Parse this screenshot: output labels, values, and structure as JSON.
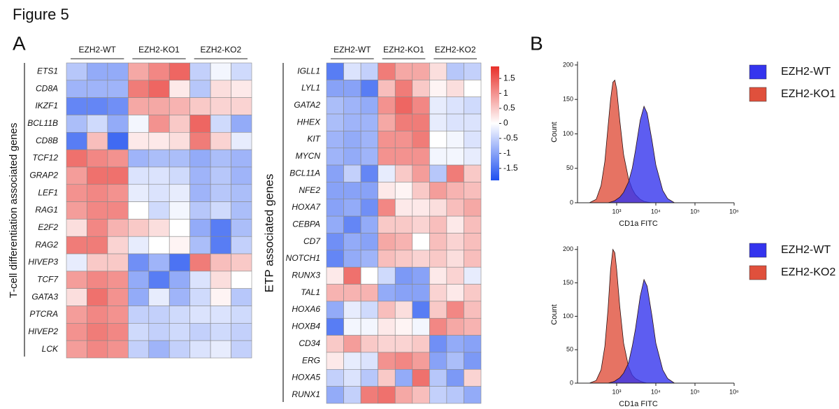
{
  "figure": {
    "title": "Figure 5",
    "panel_labels": [
      "A",
      "B"
    ]
  },
  "chart_data": [
    {
      "type": "heatmap",
      "ylabel": "T-cell differentiation associated genes",
      "column_groups": [
        "EZH2-WT",
        "EZH2-KO1",
        "EZH2-KO2"
      ],
      "rows": [
        "ETS1",
        "CD8A",
        "IKZF1",
        "BCL11B",
        "CD8B",
        "TCF12",
        "GRAP2",
        "LEF1",
        "RAG1",
        "E2F2",
        "RAG2",
        "HIVEP3",
        "TCF7",
        "GATA3",
        "PTCRA",
        "HIVEP2",
        "LCK"
      ],
      "values": [
        [
          -0.6,
          -0.9,
          -0.9,
          0.8,
          1.1,
          1.4,
          -0.5,
          -0.1,
          -0.4
        ],
        [
          -0.8,
          -0.8,
          -0.8,
          1.2,
          1.4,
          0.2,
          -0.6,
          0.3,
          0.2
        ],
        [
          -1.3,
          -1.3,
          -1.2,
          0.8,
          0.8,
          0.7,
          0.5,
          0.4,
          0.4
        ],
        [
          -0.7,
          -0.4,
          -0.9,
          -0.1,
          1.0,
          0.5,
          1.4,
          -0.4,
          -0.9
        ],
        [
          -1.4,
          0.6,
          -1.6,
          0.2,
          0.2,
          0.3,
          1.2,
          0.4,
          -0.2
        ],
        [
          1.3,
          1.1,
          1.0,
          -0.8,
          -0.7,
          -0.7,
          -0.9,
          -0.7,
          -0.8
        ],
        [
          0.9,
          1.3,
          1.3,
          -0.3,
          -0.3,
          -0.4,
          -0.8,
          -0.6,
          -0.8
        ],
        [
          1.0,
          1.1,
          1.0,
          -0.2,
          -0.3,
          -0.2,
          -0.8,
          -0.6,
          -0.7
        ],
        [
          0.9,
          1.1,
          1.1,
          0.0,
          -0.4,
          -0.1,
          -0.6,
          -0.4,
          -0.7
        ],
        [
          0.3,
          1.1,
          0.7,
          0.5,
          0.3,
          0.0,
          -0.9,
          -1.4,
          -0.7
        ],
        [
          1.2,
          1.2,
          0.4,
          -0.2,
          0.0,
          0.1,
          -0.7,
          -1.4,
          -0.5
        ],
        [
          -0.2,
          0.5,
          0.5,
          -1.2,
          -0.8,
          -1.5,
          1.2,
          0.6,
          0.5
        ],
        [
          0.9,
          1.1,
          1.0,
          -0.9,
          -1.4,
          -0.9,
          -0.3,
          0.3,
          0.0
        ],
        [
          0.3,
          1.3,
          1.0,
          -0.9,
          -0.2,
          -0.8,
          -0.4,
          0.1,
          -0.6
        ],
        [
          0.9,
          1.1,
          1.0,
          -0.5,
          -0.5,
          -0.4,
          -0.3,
          -0.3,
          -0.4
        ],
        [
          1.0,
          1.2,
          1.1,
          -0.4,
          -0.5,
          -0.4,
          -0.5,
          -0.4,
          -0.5
        ],
        [
          0.9,
          1.1,
          1.0,
          -0.5,
          -0.8,
          -0.5,
          -0.3,
          -0.2,
          -0.5
        ]
      ],
      "clim": [
        -1.9,
        1.9
      ],
      "colors": [
        "#1c4ef0",
        "#ffffff",
        "#e8302a"
      ]
    },
    {
      "type": "heatmap",
      "ylabel": "ETP associated genes",
      "column_groups": [
        "EZH2-WT",
        "EZH2-KO1",
        "EZH2-KO2"
      ],
      "rows": [
        "IGLL1",
        "LYL1",
        "GATA2",
        "HHEX",
        "KIT",
        "MYCN",
        "BCL11A",
        "NFE2",
        "HOXA7",
        "CEBPA",
        "CD7",
        "NOTCH1",
        "RUNX3",
        "TAL1",
        "HOXA6",
        "HOXB4",
        "CD34",
        "ERG",
        "HOXA5",
        "RUNX1"
      ],
      "values": [
        [
          -1.4,
          -0.3,
          -0.5,
          1.2,
          0.8,
          0.8,
          0.3,
          -0.6,
          -0.5
        ],
        [
          -1.0,
          -1.0,
          -1.4,
          0.6,
          1.2,
          0.5,
          0.1,
          0.3,
          0.0
        ],
        [
          -0.7,
          -0.8,
          -0.9,
          1.0,
          1.4,
          1.1,
          -0.2,
          -0.3,
          -0.4
        ],
        [
          -0.7,
          -0.8,
          -0.8,
          0.8,
          1.2,
          1.2,
          -0.2,
          -0.3,
          -0.3
        ],
        [
          -0.8,
          -0.9,
          -0.8,
          1.0,
          1.0,
          1.2,
          0.0,
          -0.1,
          -0.3
        ],
        [
          -0.8,
          -0.9,
          -0.8,
          1.0,
          1.0,
          1.0,
          -0.1,
          -0.1,
          -0.2
        ],
        [
          -1.0,
          -0.5,
          -1.3,
          -0.2,
          0.5,
          0.9,
          -0.6,
          1.2,
          0.5
        ],
        [
          -1.0,
          -1.0,
          -1.0,
          0.2,
          0.1,
          0.5,
          0.9,
          0.7,
          0.6
        ],
        [
          -1.0,
          -0.9,
          -1.2,
          1.1,
          0.2,
          0.2,
          0.3,
          0.6,
          0.8
        ],
        [
          -0.9,
          -1.3,
          -0.9,
          0.5,
          0.5,
          0.4,
          0.6,
          0.2,
          0.6
        ],
        [
          -1.2,
          -0.9,
          -1.0,
          0.8,
          0.7,
          0.0,
          0.6,
          0.4,
          0.6
        ],
        [
          -1.3,
          -0.9,
          -0.8,
          0.6,
          0.5,
          0.4,
          0.5,
          0.3,
          0.6
        ],
        [
          0.2,
          1.3,
          0.0,
          -0.4,
          -1.1,
          -1.0,
          0.2,
          0.4,
          -0.2
        ],
        [
          0.7,
          0.7,
          0.7,
          -0.9,
          -1.0,
          -1.0,
          0.4,
          0.2,
          0.5
        ],
        [
          -0.9,
          -0.2,
          -0.4,
          0.6,
          0.3,
          -1.4,
          0.5,
          1.1,
          0.6
        ],
        [
          -1.4,
          -0.1,
          -0.1,
          0.2,
          0.1,
          -0.1,
          1.1,
          0.8,
          0.7
        ],
        [
          0.5,
          0.9,
          0.5,
          0.4,
          0.4,
          0.5,
          -1.2,
          -0.9,
          -1.0
        ],
        [
          0.2,
          -0.2,
          -0.3,
          1.0,
          1.1,
          0.9,
          -1.0,
          -0.7,
          -1.1
        ],
        [
          -0.5,
          -0.3,
          -0.6,
          0.5,
          -0.9,
          1.3,
          -0.6,
          -1.1,
          0.4
        ],
        [
          -0.9,
          -0.5,
          1.2,
          1.3,
          0.8,
          0.6,
          -0.5,
          -0.6,
          -0.9
        ]
      ],
      "clim": [
        -1.9,
        1.9
      ],
      "colors": [
        "#1c4ef0",
        "#ffffff",
        "#e8302a"
      ],
      "colorbar_ticks": [
        1.5,
        1,
        0.5,
        0,
        -0.5,
        -1,
        -1.5
      ]
    },
    {
      "type": "area",
      "xlabel": "CD1a FITC",
      "ylabel": "Count",
      "xscale": "log",
      "x": [
        200,
        300,
        400,
        500,
        600,
        700,
        800,
        900,
        1000,
        1200,
        1500,
        2000,
        2500,
        3000,
        4000,
        5000,
        6000,
        8000,
        10000,
        15000,
        20000,
        30000
      ],
      "xlim": [
        100,
        1000000
      ],
      "xticks": [
        {
          "value": 1000,
          "label": "10³"
        },
        {
          "value": 10000,
          "label": "10⁴"
        },
        {
          "value": 100000,
          "label": "10⁵"
        },
        {
          "value": 1000000,
          "label": "10⁶"
        }
      ],
      "ylim": [
        0,
        205
      ],
      "yticks": [
        0,
        50,
        100,
        150,
        200
      ],
      "legend": "right",
      "series": [
        {
          "name": "EZH2-WT",
          "color": "#3434ee",
          "values": [
            0,
            0,
            0,
            0,
            0,
            1,
            2,
            3,
            5,
            8,
            15,
            30,
            50,
            75,
            120,
            140,
            130,
            90,
            55,
            18,
            6,
            0
          ]
        },
        {
          "name": "EZH2-KO1",
          "color": "#e0503c",
          "values": [
            0,
            5,
            25,
            60,
            110,
            150,
            175,
            178,
            165,
            120,
            70,
            35,
            20,
            12,
            5,
            2,
            1,
            0,
            0,
            0,
            0,
            0
          ]
        }
      ]
    },
    {
      "type": "area",
      "xlabel": "CD1a FITC",
      "ylabel": "Count",
      "xscale": "log",
      "x": [
        200,
        300,
        400,
        500,
        600,
        700,
        800,
        900,
        1000,
        1200,
        1500,
        2000,
        2500,
        3000,
        4000,
        5000,
        6000,
        8000,
        10000,
        15000,
        20000,
        30000
      ],
      "xlim": [
        100,
        1000000
      ],
      "xticks": [
        {
          "value": 1000,
          "label": "10³"
        },
        {
          "value": 10000,
          "label": "10⁴"
        },
        {
          "value": 100000,
          "label": "10⁵"
        },
        {
          "value": 1000000,
          "label": "10⁶"
        }
      ],
      "ylim": [
        0,
        205
      ],
      "yticks": [
        0,
        50,
        100,
        150,
        200
      ],
      "legend": "right",
      "series": [
        {
          "name": "EZH2-WT",
          "color": "#3434ee",
          "values": [
            0,
            0,
            0,
            0,
            0,
            1,
            2,
            3,
            5,
            8,
            15,
            30,
            55,
            80,
            130,
            155,
            145,
            100,
            60,
            20,
            7,
            0
          ]
        },
        {
          "name": "EZH2-KO2",
          "color": "#e0503c",
          "values": [
            0,
            4,
            20,
            55,
            110,
            170,
            200,
            195,
            170,
            115,
            60,
            25,
            12,
            7,
            3,
            1,
            0,
            0,
            0,
            0,
            0,
            0
          ]
        }
      ]
    }
  ]
}
